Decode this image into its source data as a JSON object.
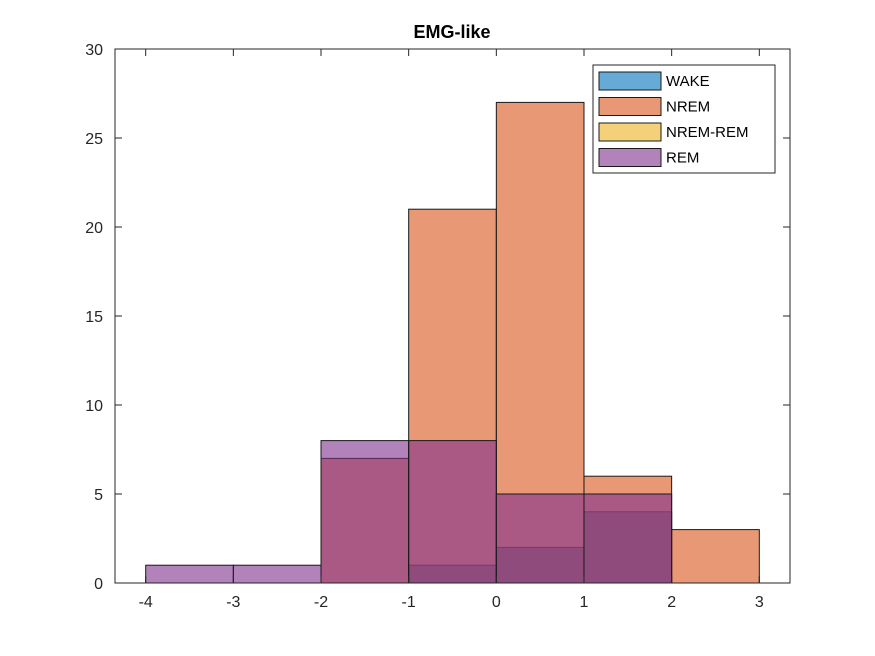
{
  "chart_data": {
    "type": "bar",
    "title": "EMG-like",
    "xlabel": "",
    "ylabel": "",
    "xlim": [
      -4.35,
      3.35
    ],
    "ylim": [
      0,
      30
    ],
    "x_ticks": [
      -4,
      -3,
      -2,
      -1,
      0,
      1,
      2,
      3
    ],
    "y_ticks": [
      0,
      5,
      10,
      15,
      20,
      25,
      30
    ],
    "bin_edges": [
      -4,
      -3,
      -2,
      -1,
      0,
      1,
      2,
      3
    ],
    "grid": false,
    "legend_position": "top-right",
    "opacity": 0.6,
    "series": [
      {
        "name": "WAKE",
        "color": "#0072BD",
        "values": [
          0,
          0,
          0,
          1,
          2,
          4,
          0
        ]
      },
      {
        "name": "NREM",
        "color": "#D95319",
        "values": [
          0,
          0,
          7,
          21,
          27,
          6,
          3
        ]
      },
      {
        "name": "NREM-REM",
        "color": "#EDB120",
        "values": [
          0,
          0,
          0,
          0,
          0,
          0,
          0
        ]
      },
      {
        "name": "REM",
        "color": "#7E2F8E",
        "values": [
          1,
          1,
          8,
          8,
          5,
          5,
          0
        ]
      }
    ]
  }
}
